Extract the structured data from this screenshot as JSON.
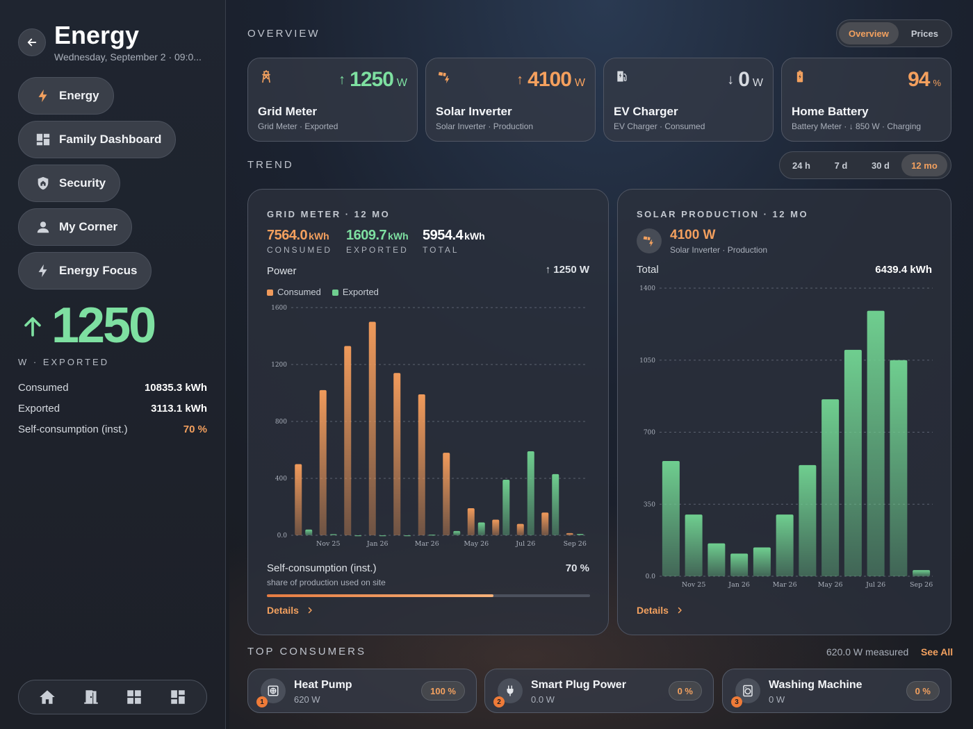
{
  "sidebar": {
    "title": "Energy",
    "date": "Wednesday, September 2 · 09:0...",
    "nav": [
      {
        "label": "Energy",
        "icon": "bolt-icon"
      },
      {
        "label": "Family Dashboard",
        "icon": "dashboard-icon"
      },
      {
        "label": "Security",
        "icon": "shield-home-icon"
      },
      {
        "label": "My Corner",
        "icon": "person-icon"
      },
      {
        "label": "Energy Focus",
        "icon": "bolt-outline-icon"
      }
    ],
    "big_value": "1250",
    "big_caption": "W · EXPORTED",
    "stats": [
      {
        "label": "Consumed",
        "value": "10835.3 kWh"
      },
      {
        "label": "Exported",
        "value": "3113.1 kWh"
      },
      {
        "label": "Self-consumption (inst.)",
        "value": "70 %"
      }
    ],
    "bottom_nav": [
      "home-icon",
      "door-icon",
      "grid-icon",
      "dashboard-icon"
    ]
  },
  "overview": {
    "title": "OVERVIEW",
    "toggle": [
      "Overview",
      "Prices"
    ],
    "toggle_active": "Overview",
    "cards": [
      {
        "name": "Grid Meter",
        "sub": "Grid Meter · Exported",
        "value": "1250",
        "unit": "W",
        "arrow": "↑",
        "color": "#7ee0a1",
        "icon": "transmission-tower-icon"
      },
      {
        "name": "Solar Inverter",
        "sub": "Solar Inverter · Production",
        "value": "4100",
        "unit": "W",
        "arrow": "↑",
        "color": "#f4a05e",
        "icon": "solar-power-icon"
      },
      {
        "name": "EV Charger",
        "sub": "EV Charger · Consumed",
        "value": "0",
        "unit": "W",
        "arrow": "↓",
        "color": "#d6dae0",
        "icon": "ev-station-icon"
      },
      {
        "name": "Home Battery",
        "sub": "Battery Meter · ↓ 850 W · Charging",
        "value": "94",
        "unit": "%",
        "arrow": "",
        "color": "#f4a05e",
        "icon": "battery-charging-icon"
      }
    ]
  },
  "trend": {
    "title": "TREND",
    "ranges": [
      "24 h",
      "7 d",
      "30 d",
      "12 mo"
    ],
    "active_range": "12 mo"
  },
  "grid_panel": {
    "title": "GRID METER · 12 MO",
    "metrics": [
      {
        "value": "7564.0",
        "unit": "kWh",
        "label": "CONSUMED"
      },
      {
        "value": "1609.7",
        "unit": "kWh",
        "label": "EXPORTED"
      },
      {
        "value": "5954.4",
        "unit": "kWh",
        "label": "TOTAL"
      }
    ],
    "power_label": "Power",
    "power_value": "↑ 1250 W",
    "legend": [
      "Consumed",
      "Exported"
    ],
    "self_label": "Self-consumption (inst.)",
    "self_sub": "share of production used on site",
    "self_value": "70 %",
    "self_fraction": 0.7,
    "details": "Details"
  },
  "solar_panel": {
    "title": "SOLAR PRODUCTION · 12 MO",
    "value": "4100 W",
    "sub": "Solar Inverter · Production",
    "total_label": "Total",
    "total_value": "6439.4 kWh",
    "details": "Details"
  },
  "chart_data": [
    {
      "type": "bar",
      "title": "GRID METER · 12 MO",
      "categories": [
        "Oct 25",
        "Nov 25",
        "Dec 25",
        "Jan 26",
        "Feb 26",
        "Mar 26",
        "Apr 26",
        "May 26",
        "Jun 26",
        "Jul 26",
        "Aug 26",
        "Sep 26"
      ],
      "x_tick_labels": [
        "Nov 25",
        "Jan 26",
        "Mar 26",
        "May 26",
        "Jul 26",
        "Sep 26"
      ],
      "y_ticks": [
        "0.0",
        "400",
        "800",
        "1200",
        "1600"
      ],
      "ylim": [
        0,
        1600
      ],
      "series": [
        {
          "name": "Consumed",
          "color": "#f09a5b",
          "values": [
            500,
            1020,
            1330,
            1500,
            1140,
            990,
            580,
            190,
            110,
            80,
            160,
            15
          ]
        },
        {
          "name": "Exported",
          "color": "#6fce8f",
          "values": [
            40,
            8,
            0,
            0,
            0,
            5,
            30,
            90,
            390,
            590,
            430,
            10
          ]
        }
      ],
      "legend": "top-left",
      "grid": true
    },
    {
      "type": "bar",
      "title": "SOLAR PRODUCTION · 12 MO",
      "categories": [
        "Oct 25",
        "Nov 25",
        "Dec 25",
        "Jan 26",
        "Feb 26",
        "Mar 26",
        "Apr 26",
        "May 26",
        "Jun 26",
        "Jul 26",
        "Aug 26",
        "Sep 26"
      ],
      "x_tick_labels": [
        "Nov 25",
        "Jan 26",
        "Mar 26",
        "May 26",
        "Jul 26",
        "Sep 26"
      ],
      "y_ticks": [
        "0.0",
        "350",
        "700",
        "1050",
        "1400"
      ],
      "ylim": [
        0,
        1400
      ],
      "series": [
        {
          "name": "Production",
          "color": "#6fce8f",
          "values": [
            560,
            300,
            160,
            110,
            140,
            300,
            540,
            860,
            1100,
            1290,
            1050,
            30
          ]
        }
      ],
      "grid": true
    }
  ],
  "consumers": {
    "title": "TOP CONSUMERS",
    "measured": "620.0 W measured",
    "see_all": "See All",
    "items": [
      {
        "rank": "1",
        "name": "Heat Pump",
        "watts": "620 W",
        "pct": "100 %",
        "icon": "heat-pump-icon"
      },
      {
        "rank": "2",
        "name": "Smart Plug Power",
        "watts": "0.0 W",
        "pct": "0 %",
        "icon": "plug-icon"
      },
      {
        "rank": "3",
        "name": "Washing Machine",
        "watts": "0 W",
        "pct": "0 %",
        "icon": "washing-machine-icon"
      }
    ]
  }
}
